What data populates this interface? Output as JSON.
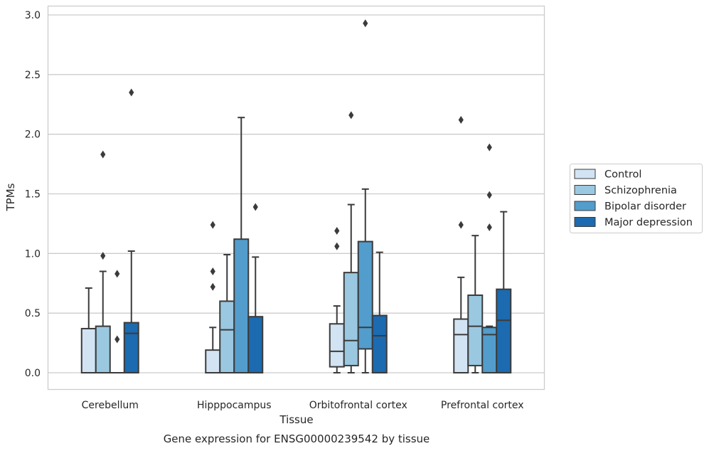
{
  "chart_data": {
    "type": "box",
    "xlabel": "Tissue",
    "ylabel": "TPMs",
    "caption": "Gene expression for ENSG00000239542 by tissue",
    "ylim": [
      -0.14,
      3.08
    ],
    "yticks": [
      "0.0",
      "0.5",
      "1.0",
      "1.5",
      "2.0",
      "2.5",
      "3.0"
    ],
    "grid": "horizontal",
    "legend_placement": "right",
    "categories": [
      "Cerebellum",
      "Hipppocampus",
      "Orbitofrontal cortex",
      "Prefrontal cortex"
    ],
    "series": [
      {
        "name": "Control",
        "color": "#d2e3f3",
        "boxes": [
          {
            "min": 0.0,
            "q1": 0.0,
            "median": 0.0,
            "q3": 0.37,
            "max": 0.71,
            "outliers": []
          },
          {
            "min": 0.0,
            "q1": 0.0,
            "median": 0.0,
            "q3": 0.19,
            "max": 0.38,
            "outliers": [
              0.72,
              0.85,
              1.24
            ]
          },
          {
            "min": 0.0,
            "q1": 0.05,
            "median": 0.18,
            "q3": 0.41,
            "max": 0.56,
            "outliers": [
              1.06,
              1.19
            ]
          },
          {
            "min": 0.0,
            "q1": 0.0,
            "median": 0.32,
            "q3": 0.45,
            "max": 0.8,
            "outliers": [
              1.24,
              2.12
            ]
          }
        ]
      },
      {
        "name": "Schizophrenia",
        "color": "#9ac8e0",
        "boxes": [
          {
            "min": 0.0,
            "q1": 0.0,
            "median": 0.0,
            "q3": 0.39,
            "max": 0.85,
            "outliers": [
              0.98,
              1.83
            ]
          },
          {
            "min": 0.0,
            "q1": 0.0,
            "median": 0.36,
            "q3": 0.6,
            "max": 0.99,
            "outliers": []
          },
          {
            "min": 0.0,
            "q1": 0.06,
            "median": 0.27,
            "q3": 0.84,
            "max": 1.41,
            "outliers": [
              2.16
            ]
          },
          {
            "min": 0.0,
            "q1": 0.06,
            "median": 0.39,
            "q3": 0.65,
            "max": 1.15,
            "outliers": []
          }
        ]
      },
      {
        "name": "Bipolar disorder",
        "color": "#529dcc",
        "boxes": [
          {
            "min": 0.0,
            "q1": 0.0,
            "median": 0.0,
            "q3": 0.0,
            "max": 0.0,
            "outliers": [
              0.28,
              0.83
            ]
          },
          {
            "min": 0.0,
            "q1": 0.0,
            "median": 0.0,
            "q3": 1.12,
            "max": 2.14,
            "outliers": []
          },
          {
            "min": 0.0,
            "q1": 0.2,
            "median": 0.38,
            "q3": 1.1,
            "max": 1.54,
            "outliers": [
              2.93
            ]
          },
          {
            "min": 0.0,
            "q1": 0.0,
            "median": 0.32,
            "q3": 0.38,
            "max": 0.39,
            "outliers": [
              1.22,
              1.49,
              1.89
            ]
          }
        ]
      },
      {
        "name": "Major depression",
        "color": "#1c6aaf",
        "boxes": [
          {
            "min": 0.0,
            "q1": 0.0,
            "median": 0.33,
            "q3": 0.42,
            "max": 1.02,
            "outliers": [
              2.35
            ]
          },
          {
            "min": 0.0,
            "q1": 0.0,
            "median": 0.0,
            "q3": 0.47,
            "max": 0.97,
            "outliers": [
              1.39
            ]
          },
          {
            "min": 0.0,
            "q1": 0.0,
            "median": 0.31,
            "q3": 0.48,
            "max": 1.01,
            "outliers": []
          },
          {
            "min": 0.0,
            "q1": 0.0,
            "median": 0.44,
            "q3": 0.7,
            "max": 1.35,
            "outliers": []
          }
        ]
      }
    ]
  }
}
